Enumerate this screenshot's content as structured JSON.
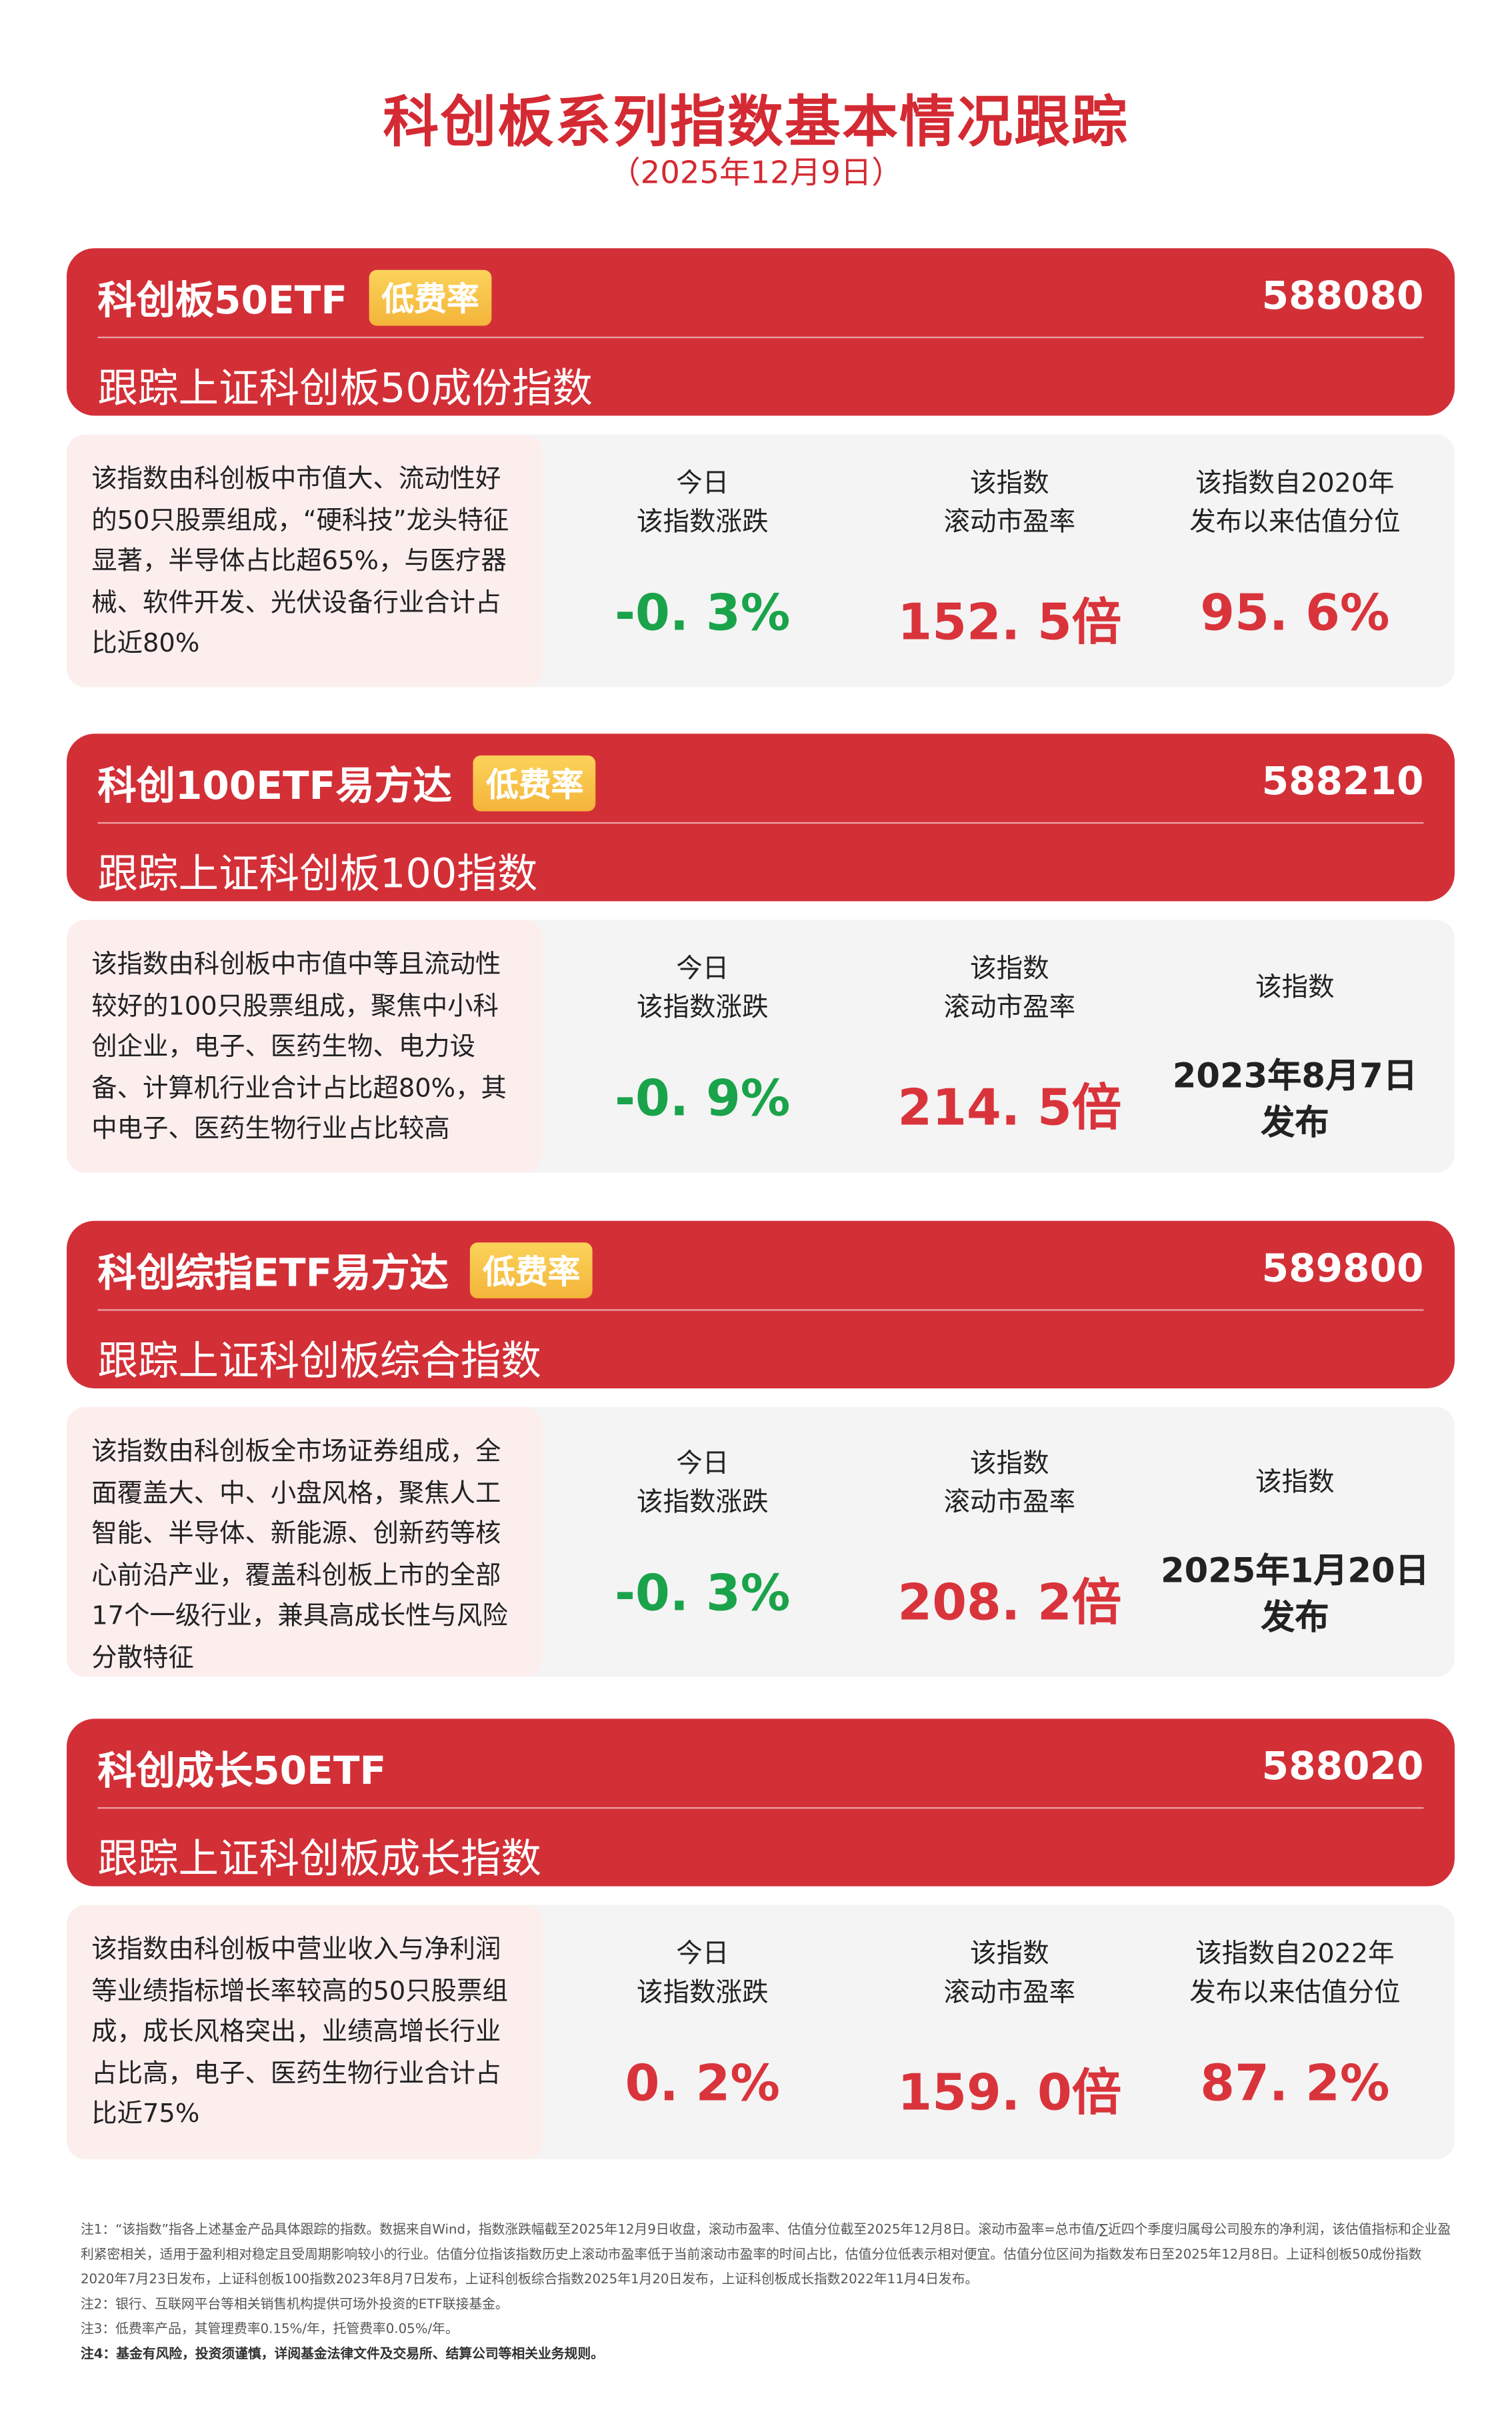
{
  "header": {
    "title": "科创板系列指数基本情况跟踪",
    "date": "（2025年12月9日）"
  },
  "colors": {
    "brand_red": "#d32f37",
    "down_green": "#1aa34a",
    "up_red": "#d9343b",
    "badge": "#f7c548"
  },
  "cards": [
    {
      "name": "科创板50ETF",
      "badge": "低费率",
      "code": "588080",
      "tracking": "跟踪上证科创板50成份指数",
      "description": "该指数由科创板中市值大、流动性好的50只股票组成，“硬科技”龙头特征显著，半导体占比超65%，与医疗器械、软件开发、光伏设备行业合计占比近80%",
      "col1_label1": "今日",
      "col1_label2": "该指数涨跌",
      "change": "-0. 3%",
      "col2_label1": "该指数",
      "col2_label2": "滚动市盈率",
      "pe": "152. 5倍",
      "col3_label1": "该指数自2020年",
      "col3_label2": "发布以来估值分位",
      "percentile": "95. 6%"
    },
    {
      "name": "科创100ETF易方达",
      "badge": "低费率",
      "code": "588210",
      "tracking": "跟踪上证科创板100指数",
      "description": "该指数由科创板中市值中等且流动性较好的100只股票组成，聚焦中小科创企业，电子、医药生物、电力设备、计算机行业合计占比超80%，其中电子、医药生物行业占比较高",
      "col1_label1": "今日",
      "col1_label2": "该指数涨跌",
      "change": "-0. 9%",
      "col2_label1": "该指数",
      "col2_label2": "滚动市盈率",
      "pe": "214. 5倍",
      "col3_label1": "该指数",
      "pub_date": "2023年8月7日",
      "pub_suffix": "发布"
    },
    {
      "name": "科创综指ETF易方达",
      "badge": "低费率",
      "code": "589800",
      "tracking": "跟踪上证科创板综合指数",
      "description": "该指数由科创板全市场证券组成，全面覆盖大、中、小盘风格，聚焦人工智能、半导体、新能源、创新药等核心前沿产业，覆盖科创板上市的全部17个一级行业，兼具高成长性与风险分散特征",
      "col1_label1": "今日",
      "col1_label2": "该指数涨跌",
      "change": "-0. 3%",
      "col2_label1": "该指数",
      "col2_label2": "滚动市盈率",
      "pe": "208. 2倍",
      "col3_label1": "该指数",
      "pub_date": "2025年1月20日",
      "pub_suffix": "发布"
    },
    {
      "name": "科创成长50ETF",
      "code": "588020",
      "tracking": "跟踪上证科创板成长指数",
      "description": "该指数由科创板中营业收入与净利润等业绩指标增长率较高的50只股票组成，成长风格突出，业绩高增长行业占比高，电子、医药生物行业合计占比近75%",
      "col1_label1": "今日",
      "col1_label2": "该指数涨跌",
      "change": "0. 2%",
      "col2_label1": "该指数",
      "col2_label2": "滚动市盈率",
      "pe": "159. 0倍",
      "col3_label1": "该指数自2022年",
      "col3_label2": "发布以来估值分位",
      "percentile": "87. 2%"
    }
  ],
  "notes": [
    "注1：“该指数”指各上述基金产品具体跟踪的指数。数据来自Wind，指数涨跌幅截至2025年12月9日收盘，滚动市盈率、估值分位截至2025年12月8日。滚动市盈率=总市值/∑近四个季度归属母公司股东的净利润，该估值指标和企业盈利紧密相关，适用于盈利相对稳定且受周期影响较小的行业。估值分位指该指数历史上滚动市盈率低于当前滚动市盈率的时间占比，估值分位低表示相对便宜。估值分位区间为指数发布日至2025年12月8日。上证科创板50成份指数2020年7月23日发布，上证科创板100指数2023年8月7日发布，上证科创板综合指数2025年1月20日发布，上证科创板成长指数2022年11月4日发布。",
    "注2：银行、互联网平台等相关销售机构提供可场外投资的ETF联接基金。",
    "注3：低费率产品，其管理费率0.15%/年，托管费率0.05%/年。",
    "注4：基金有风险，投资须谨慎，详阅基金法律文件及交易所、结算公司等相关业务规则。"
  ]
}
